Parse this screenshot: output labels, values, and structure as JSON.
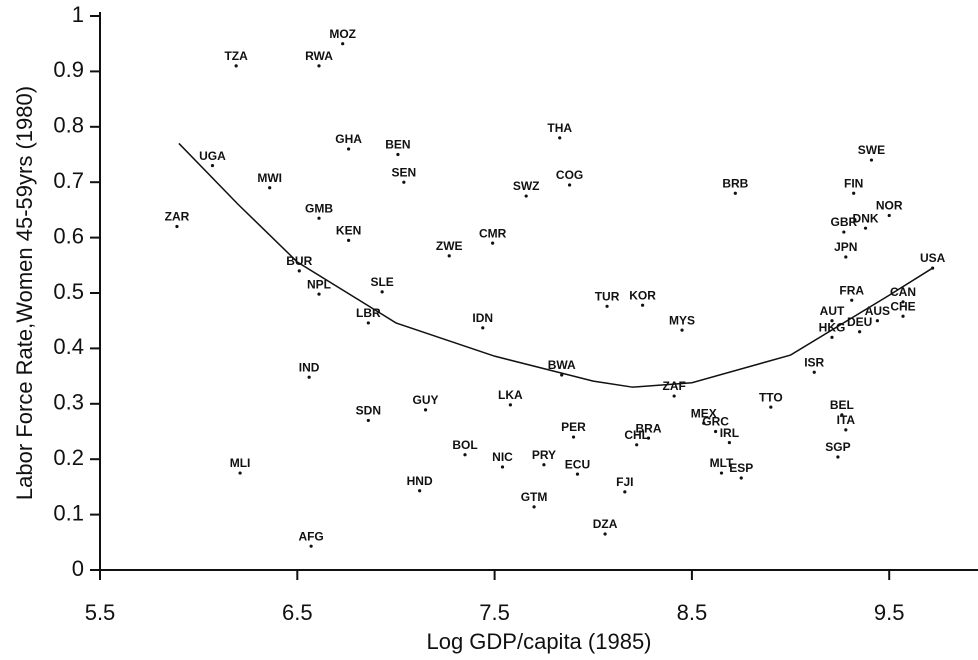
{
  "chart_data": {
    "type": "scatter",
    "x_label": "Log GDP/capita  (1985)",
    "y_label": "Labor Force Rate,Women 45-59yrs (1980)",
    "xlim": [
      5.5,
      9.95
    ],
    "ylim": [
      0,
      1
    ],
    "xticks": [
      5.5,
      6.5,
      7.5,
      8.5,
      9.5
    ],
    "yticks": [
      0,
      0.1,
      0.2,
      0.3,
      0.4,
      0.5,
      0.6,
      0.7,
      0.8,
      0.9,
      1
    ],
    "color": "#111111",
    "series": [
      {
        "labels": [
          "TZA",
          "RWA",
          "MOZ",
          "UGA",
          "ZAR",
          "MWI",
          "GHA",
          "BEN",
          "SEN",
          "THA",
          "COG",
          "SWZ",
          "BRB",
          "SWE",
          "FIN",
          "NOR",
          "DNK",
          "GBR",
          "JPN",
          "USA",
          "GMB",
          "KEN",
          "CMR",
          "ZWE",
          "BUR",
          "NPL",
          "SLE",
          "LBR",
          "IDN",
          "TUR",
          "KOR",
          "MYS",
          "FRA",
          "CAN",
          "AUT",
          "AUS",
          "CHE",
          "HKG",
          "DEU",
          "ISR",
          "IND",
          "BWA",
          "ZAF",
          "TTO",
          "SDN",
          "GUY",
          "LKA",
          "BEL",
          "ITA",
          "PER",
          "BRA",
          "CHL",
          "MEX",
          "GRC",
          "IRL",
          "SGP",
          "BOL",
          "NIC",
          "PRY",
          "ECU",
          "MLI",
          "MLT",
          "ESP",
          "HND",
          "FJI",
          "GTM",
          "DZA",
          "AFG"
        ],
        "x": [
          6.19,
          6.61,
          6.73,
          6.07,
          5.89,
          6.36,
          6.76,
          7.01,
          7.04,
          7.83,
          7.88,
          7.66,
          8.72,
          9.41,
          9.32,
          9.5,
          9.38,
          9.27,
          9.28,
          9.72,
          6.61,
          6.76,
          7.49,
          7.27,
          6.51,
          6.61,
          6.93,
          6.86,
          7.44,
          8.07,
          8.25,
          8.45,
          9.31,
          9.57,
          9.21,
          9.44,
          9.57,
          9.21,
          9.35,
          9.12,
          6.56,
          7.84,
          8.41,
          8.9,
          6.86,
          7.15,
          7.58,
          9.26,
          9.28,
          7.9,
          8.28,
          8.22,
          8.56,
          8.62,
          8.69,
          9.24,
          7.35,
          7.54,
          7.75,
          7.92,
          6.21,
          8.65,
          8.75,
          7.12,
          8.16,
          7.7,
          8.06,
          6.57
        ],
        "values": [
          0.91,
          0.91,
          0.95,
          0.73,
          0.62,
          0.69,
          0.76,
          0.75,
          0.7,
          0.78,
          0.695,
          0.675,
          0.68,
          0.74,
          0.68,
          0.64,
          0.617,
          0.61,
          0.565,
          0.545,
          0.635,
          0.595,
          0.59,
          0.567,
          0.54,
          0.498,
          0.502,
          0.446,
          0.437,
          0.476,
          0.478,
          0.433,
          0.487,
          0.484,
          0.45,
          0.45,
          0.458,
          0.42,
          0.43,
          0.357,
          0.348,
          0.352,
          0.314,
          0.294,
          0.27,
          0.289,
          0.298,
          0.28,
          0.253,
          0.24,
          0.238,
          0.226,
          0.265,
          0.25,
          0.23,
          0.204,
          0.208,
          0.186,
          0.19,
          0.173,
          0.175,
          0.175,
          0.166,
          0.143,
          0.141,
          0.114,
          0.065,
          0.043
        ]
      }
    ],
    "fit_line": {
      "x": [
        5.9,
        6.2,
        6.5,
        7,
        7.5,
        8,
        8.2,
        8.5,
        9,
        9.5,
        9.72
      ],
      "values": [
        0.77,
        0.66,
        0.556,
        0.446,
        0.386,
        0.341,
        0.33,
        0.338,
        0.388,
        0.496,
        0.545
      ]
    }
  }
}
